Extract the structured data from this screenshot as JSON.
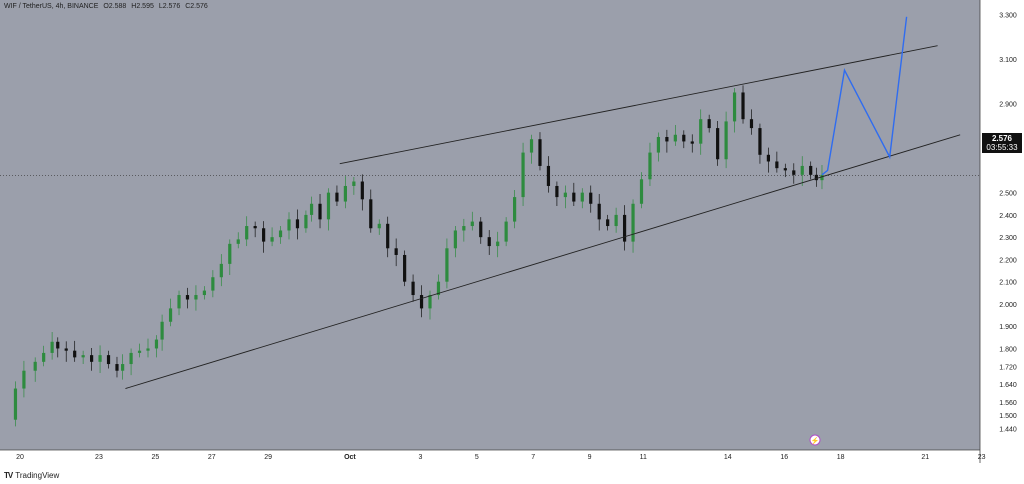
{
  "header": {
    "symbol": "WIF / TetherUS, 4h, BINANCE",
    "open": "O2.588",
    "high": "H2.595",
    "low": "L2.576",
    "close": "C2.576"
  },
  "last_price": {
    "price": "2.576",
    "countdown": "03:55:33"
  },
  "branding": {
    "logo_text": "TradingView",
    "logo_icon": "tradingview-logo-icon"
  },
  "colors": {
    "background": "#9b9fab",
    "bull": "#2e8b3f",
    "bear": "#111111",
    "trendline": "#222222",
    "projection": "#2f6cf0",
    "tag_bg": "#111111"
  },
  "chart_data": {
    "type": "candlestick",
    "title": "WIF / TetherUS, 4h, BINANCE",
    "x_tick_labels": [
      "20",
      "23",
      "25",
      "27",
      "29",
      "Oct",
      "3",
      "5",
      "7",
      "9",
      "11",
      "14",
      "16",
      "18",
      "21",
      "23"
    ],
    "y_tick_labels": [
      "3.300",
      "3.100",
      "2.900",
      "2.700",
      "2.500",
      "2.400",
      "2.300",
      "2.200",
      "2.100",
      "2.000",
      "1.900",
      "1.800",
      "1.720",
      "1.640",
      "1.560",
      "1.500",
      "1.440"
    ],
    "ylim": [
      1.4,
      3.3
    ],
    "xlim": [
      0,
      34.2
    ],
    "grid": false,
    "current_price": 2.576,
    "close_path": [
      [
        0.0,
        1.48
      ],
      [
        0.3,
        1.62
      ],
      [
        0.6,
        1.7
      ],
      [
        1.0,
        1.74
      ],
      [
        1.3,
        1.78
      ],
      [
        1.6,
        1.83
      ],
      [
        1.8,
        1.8
      ],
      [
        2.1,
        1.79
      ],
      [
        2.4,
        1.76
      ],
      [
        2.7,
        1.77
      ],
      [
        3.0,
        1.74
      ],
      [
        3.3,
        1.77
      ],
      [
        3.6,
        1.73
      ],
      [
        3.9,
        1.7
      ],
      [
        4.1,
        1.73
      ],
      [
        4.4,
        1.78
      ],
      [
        4.7,
        1.79
      ],
      [
        5.0,
        1.8
      ],
      [
        5.3,
        1.84
      ],
      [
        5.5,
        1.92
      ],
      [
        5.8,
        1.98
      ],
      [
        6.1,
        2.04
      ],
      [
        6.4,
        2.02
      ],
      [
        6.7,
        2.04
      ],
      [
        7.0,
        2.06
      ],
      [
        7.3,
        2.12
      ],
      [
        7.6,
        2.18
      ],
      [
        7.9,
        2.27
      ],
      [
        8.2,
        2.29
      ],
      [
        8.5,
        2.35
      ],
      [
        8.8,
        2.34
      ],
      [
        9.1,
        2.28
      ],
      [
        9.4,
        2.3
      ],
      [
        9.7,
        2.33
      ],
      [
        10.0,
        2.38
      ],
      [
        10.3,
        2.34
      ],
      [
        10.6,
        2.4
      ],
      [
        10.8,
        2.45
      ],
      [
        11.1,
        2.38
      ],
      [
        11.4,
        2.5
      ],
      [
        11.7,
        2.46
      ],
      [
        12.0,
        2.53
      ],
      [
        12.3,
        2.55
      ],
      [
        12.6,
        2.47
      ],
      [
        12.9,
        2.34
      ],
      [
        13.2,
        2.36
      ],
      [
        13.5,
        2.25
      ],
      [
        13.8,
        2.22
      ],
      [
        14.1,
        2.1
      ],
      [
        14.4,
        2.04
      ],
      [
        14.7,
        1.98
      ],
      [
        15.0,
        2.04
      ],
      [
        15.3,
        2.1
      ],
      [
        15.6,
        2.25
      ],
      [
        15.9,
        2.33
      ],
      [
        16.2,
        2.35
      ],
      [
        16.5,
        2.37
      ],
      [
        16.8,
        2.3
      ],
      [
        17.1,
        2.26
      ],
      [
        17.4,
        2.28
      ],
      [
        17.7,
        2.37
      ],
      [
        18.0,
        2.48
      ],
      [
        18.3,
        2.68
      ],
      [
        18.6,
        2.74
      ],
      [
        18.9,
        2.62
      ],
      [
        19.2,
        2.53
      ],
      [
        19.5,
        2.48
      ],
      [
        19.8,
        2.5
      ],
      [
        20.1,
        2.46
      ],
      [
        20.4,
        2.5
      ],
      [
        20.7,
        2.45
      ],
      [
        21.0,
        2.38
      ],
      [
        21.3,
        2.35
      ],
      [
        21.6,
        2.4
      ],
      [
        21.9,
        2.28
      ],
      [
        22.2,
        2.45
      ],
      [
        22.5,
        2.56
      ],
      [
        22.8,
        2.68
      ],
      [
        23.1,
        2.75
      ],
      [
        23.4,
        2.73
      ],
      [
        23.7,
        2.76
      ],
      [
        24.0,
        2.73
      ],
      [
        24.3,
        2.72
      ],
      [
        24.6,
        2.83
      ],
      [
        24.9,
        2.79
      ],
      [
        25.2,
        2.65
      ],
      [
        25.5,
        2.82
      ],
      [
        25.8,
        2.95
      ],
      [
        26.1,
        2.83
      ],
      [
        26.4,
        2.79
      ],
      [
        26.7,
        2.67
      ],
      [
        27.0,
        2.64
      ],
      [
        27.3,
        2.61
      ],
      [
        27.6,
        2.6
      ],
      [
        27.9,
        2.58
      ],
      [
        28.2,
        2.62
      ],
      [
        28.5,
        2.58
      ],
      [
        28.7,
        2.556
      ],
      [
        28.9,
        2.58
      ]
    ],
    "trendlines": [
      {
        "role": "upper",
        "points": [
          [
            11.8,
            2.63
          ],
          [
            33.0,
            3.16
          ]
        ]
      },
      {
        "role": "lower",
        "points": [
          [
            4.2,
            1.62
          ],
          [
            33.8,
            2.76
          ]
        ]
      }
    ],
    "projection": [
      [
        28.9,
        2.58
      ],
      [
        29.1,
        2.6
      ],
      [
        29.7,
        3.05
      ],
      [
        31.3,
        2.66
      ],
      [
        31.9,
        3.29
      ]
    ]
  }
}
